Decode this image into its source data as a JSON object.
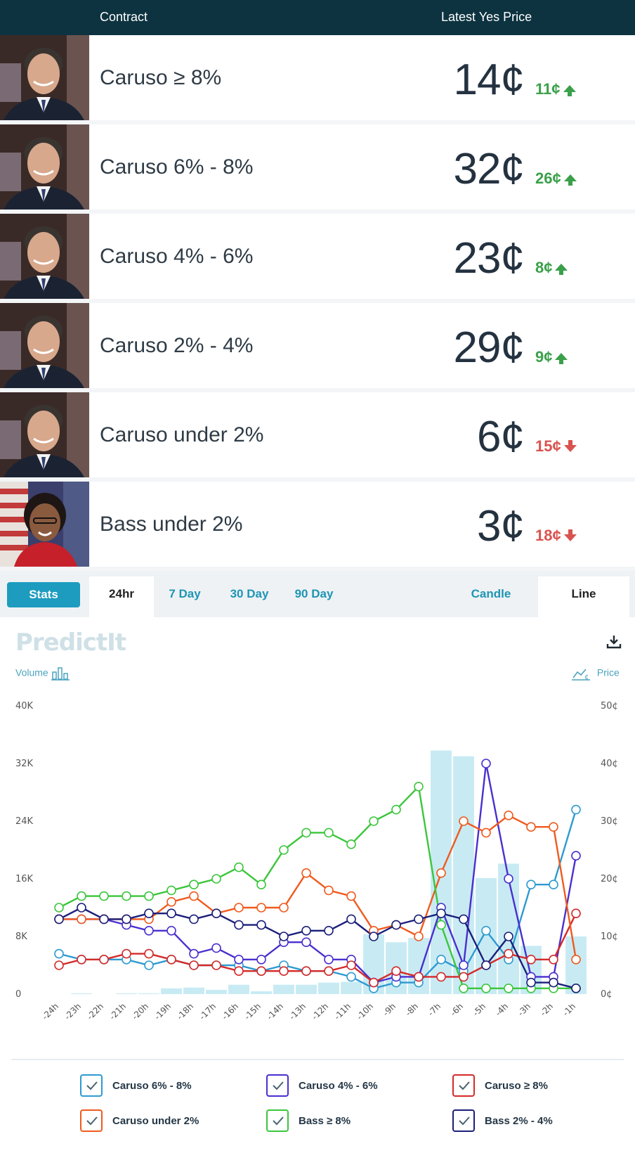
{
  "header": {
    "contract_label": "Contract",
    "price_label": "Latest Yes Price"
  },
  "contracts": [
    {
      "name": "Caruso ≥ 8%",
      "price": "14¢",
      "change": "11¢",
      "direction": "up",
      "person": "caruso"
    },
    {
      "name": "Caruso 6% - 8%",
      "price": "32¢",
      "change": "26¢",
      "direction": "up",
      "person": "caruso"
    },
    {
      "name": "Caruso 4% - 6%",
      "price": "23¢",
      "change": "8¢",
      "direction": "up",
      "person": "caruso"
    },
    {
      "name": "Caruso 2% - 4%",
      "price": "29¢",
      "change": "9¢",
      "direction": "up",
      "person": "caruso"
    },
    {
      "name": "Caruso under 2%",
      "price": "6¢",
      "change": "15¢",
      "direction": "down",
      "person": "caruso"
    },
    {
      "name": "Bass under 2%",
      "price": "3¢",
      "change": "18¢",
      "direction": "down",
      "person": "bass"
    }
  ],
  "tabs": {
    "stats": "Stats",
    "ranges": [
      "24hr",
      "7 Day",
      "30 Day",
      "90 Day"
    ],
    "active_range": "24hr",
    "styles": [
      "Candle",
      "Line"
    ],
    "active_style": "Line"
  },
  "chart_header": {
    "logo": "PredictIt",
    "volume_label": "Volume",
    "price_label": "Price",
    "download_icon": "download-icon"
  },
  "chart_data": {
    "type": "line",
    "x": [
      "-24h",
      "-23h",
      "-22h",
      "-21h",
      "-20h",
      "-19h",
      "-18h",
      "-17h",
      "-16h",
      "-15h",
      "-14h",
      "-13h",
      "-12h",
      "-11h",
      "-10h",
      "-9h",
      "-8h",
      "-7h",
      "-6h",
      "-5h",
      "-4h",
      "-3h",
      "-2h",
      "-1h"
    ],
    "y_left_ticks": [
      "0",
      "8K",
      "16K",
      "24K",
      "32K",
      "40K"
    ],
    "y_left_range": [
      0,
      40000
    ],
    "y_right_ticks": [
      "0¢",
      "10¢",
      "20¢",
      "30¢",
      "40¢",
      "50¢"
    ],
    "y_right_range": [
      0,
      50
    ],
    "volume": [
      0,
      100,
      0,
      100,
      100,
      800,
      900,
      600,
      1300,
      400,
      1300,
      1300,
      1600,
      1700,
      8300,
      7200,
      7800,
      33800,
      33000,
      16100,
      18100,
      6700,
      0,
      8000
    ],
    "series": [
      {
        "name": "Caruso 6% - 8%",
        "color": "#2e9ad0",
        "values": [
          7,
          6,
          6,
          6,
          5,
          6,
          5,
          5,
          5,
          4,
          5,
          4,
          4,
          3,
          1,
          2,
          2,
          6,
          4,
          11,
          6,
          19,
          19,
          32
        ]
      },
      {
        "name": "Caruso 4% - 6%",
        "color": "#4a2fcf",
        "values": [
          13,
          13,
          13,
          12,
          11,
          11,
          7,
          8,
          6,
          6,
          9,
          9,
          6,
          6,
          2,
          3,
          3,
          15,
          5,
          40,
          20,
          3,
          3,
          24
        ]
      },
      {
        "name": "Caruso ≥ 8%",
        "color": "#d42a2a",
        "values": [
          5,
          6,
          6,
          7,
          7,
          6,
          5,
          5,
          4,
          4,
          4,
          4,
          4,
          5,
          2,
          4,
          3,
          3,
          3,
          5,
          7,
          6,
          6,
          14
        ]
      },
      {
        "name": "Caruso under 2%",
        "color": "#f05a1e",
        "values": [
          13,
          13,
          13,
          13,
          13,
          16,
          17,
          14,
          15,
          15,
          15,
          21,
          18,
          17,
          11,
          12,
          10,
          21,
          30,
          28,
          31,
          29,
          29,
          6
        ]
      },
      {
        "name": "Bass ≥ 8%",
        "color": "#3cc63c",
        "values": [
          15,
          17,
          17,
          17,
          17,
          18,
          19,
          20,
          22,
          19,
          25,
          28,
          28,
          26,
          30,
          32,
          36,
          12,
          1,
          1,
          1,
          1,
          1,
          1
        ]
      },
      {
        "name": "Bass 2% - 4%",
        "color": "#1b1f7a",
        "values": [
          13,
          15,
          13,
          13,
          14,
          14,
          13,
          14,
          12,
          12,
          10,
          11,
          11,
          13,
          10,
          12,
          13,
          14,
          13,
          5,
          10,
          2,
          2,
          1
        ]
      }
    ]
  },
  "legend": [
    {
      "label": "Caruso 6% - 8%",
      "color": "#2e9ad0"
    },
    {
      "label": "Caruso 4% - 6%",
      "color": "#4a2fcf"
    },
    {
      "label": "Caruso ≥ 8%",
      "color": "#d42a2a"
    },
    {
      "label": "Caruso under 2%",
      "color": "#f05a1e"
    },
    {
      "label": "Bass ≥ 8%",
      "color": "#3cc63c"
    },
    {
      "label": "Bass 2% - 4%",
      "color": "#1b1f7a"
    }
  ]
}
